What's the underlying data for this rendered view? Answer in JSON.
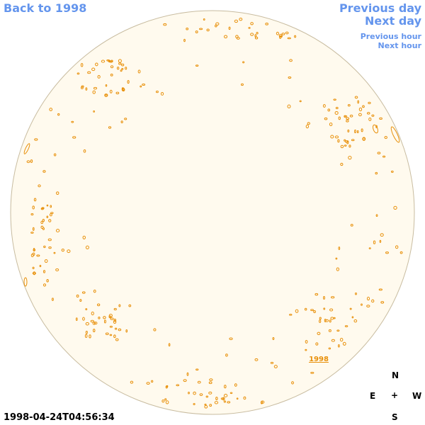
{
  "navigation": {
    "back": "Back to 1998",
    "previous_day": "Previous day",
    "next_day": "Next day",
    "previous_hour": "Previous hour",
    "next_hour": "Next hour"
  },
  "disk_label": "1998",
  "timestamp": "1998-04-24T04:56:34",
  "compass": {
    "north": "N",
    "east": "E",
    "center": "+",
    "west": "W",
    "south": "S"
  }
}
